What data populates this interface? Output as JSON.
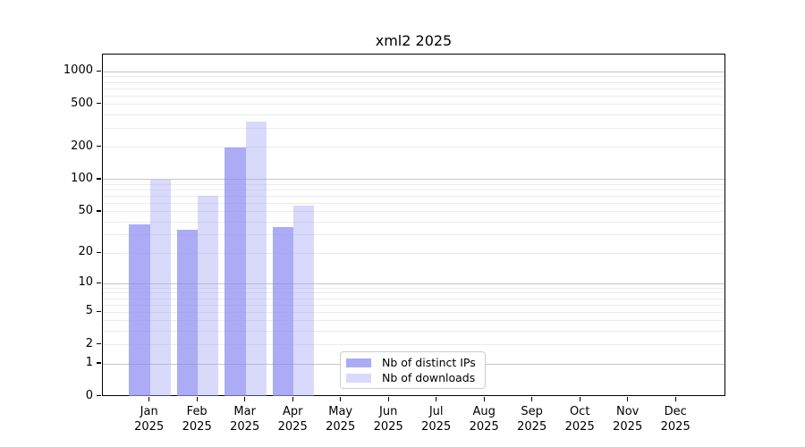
{
  "title": "xml2 2025",
  "chart_data": {
    "type": "bar",
    "title": "xml2 2025",
    "year": "2025",
    "categories": [
      "Jan",
      "Feb",
      "Mar",
      "Apr",
      "May",
      "Jun",
      "Jul",
      "Aug",
      "Sep",
      "Oct",
      "Nov",
      "Dec"
    ],
    "series": [
      {
        "name": "Nb of distinct IPs",
        "color": "rgba(138,138,242,0.72)",
        "values": [
          38,
          34,
          200,
          36,
          0,
          0,
          0,
          0,
          0,
          0,
          0,
          0
        ]
      },
      {
        "name": "Nb of downloads",
        "color": "rgba(165,165,245,0.42)",
        "values": [
          100,
          71,
          345,
          57,
          0,
          0,
          0,
          0,
          0,
          0,
          0,
          0
        ]
      }
    ],
    "yscale": "log10(value+1)",
    "y_ticks": [
      0,
      1,
      2,
      5,
      10,
      20,
      50,
      100,
      200,
      500,
      1000
    ],
    "ylim": [
      0,
      1440
    ],
    "grid": "both",
    "legend_position": "lower center",
    "colors": {
      "grid_major": "#c6c6c6",
      "grid_minor": "#ebebeb",
      "axis": "#000000",
      "background": "#ffffff"
    }
  }
}
